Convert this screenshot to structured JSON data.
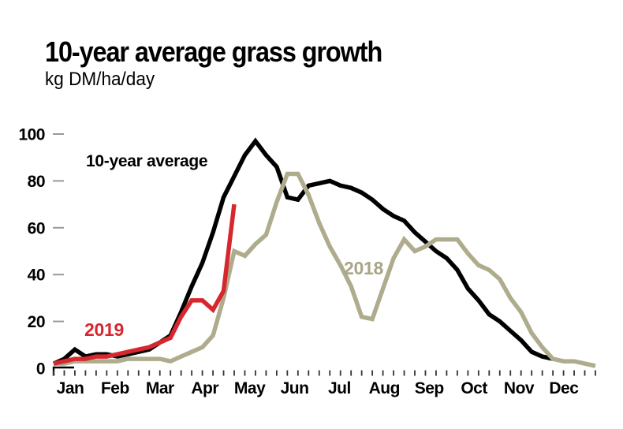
{
  "header": {
    "title": "10-year average grass growth",
    "units": "kg DM/ha/day"
  },
  "chart_data": {
    "type": "line",
    "title": "10-year average grass growth",
    "ylabel": "kg DM/ha/day",
    "xlabel": "",
    "x_unit": "week-of-year",
    "grid": false,
    "ylim": [
      0,
      100
    ],
    "yticks": [
      0,
      20,
      40,
      60,
      80,
      100
    ],
    "months": [
      "Jan",
      "Feb",
      "Mar",
      "Apr",
      "May",
      "Jun",
      "Jul",
      "Aug",
      "Sep",
      "Oct",
      "Nov",
      "Dec"
    ],
    "axis_colors": {
      "ytick": "#999999",
      "xtick": "#333333",
      "label": "#000000"
    },
    "series": [
      {
        "id": "avg10",
        "name": "10-year average",
        "color": "#000000",
        "values": [
          2,
          4,
          8,
          5,
          6,
          6,
          5,
          6,
          7,
          8,
          11,
          14,
          24,
          35,
          45,
          58,
          73,
          82,
          91,
          97,
          91,
          86,
          73,
          72,
          78,
          79,
          80,
          78,
          77,
          75,
          72,
          68,
          65,
          63,
          58,
          54,
          50,
          47,
          42,
          34,
          29,
          23,
          20,
          16,
          12,
          7,
          5,
          4
        ]
      },
      {
        "id": "y2018",
        "name": "2018",
        "color": "#afac8e",
        "values": [
          2,
          2,
          3,
          3,
          3,
          3,
          3,
          4,
          4,
          4,
          4,
          3,
          5,
          7,
          9,
          14,
          30,
          50,
          48,
          53,
          57,
          71,
          83,
          83,
          74,
          62,
          52,
          44,
          35,
          22,
          21,
          34,
          47,
          55,
          50,
          52,
          55,
          55,
          55,
          49,
          44,
          42,
          38,
          30,
          24,
          15,
          9,
          4,
          3,
          3,
          2,
          1
        ]
      },
      {
        "id": "y2019",
        "name": "2019",
        "color": "#d7272e",
        "values": [
          2,
          3,
          4,
          4,
          5,
          5,
          6,
          7,
          8,
          9,
          11,
          13,
          22,
          29,
          29,
          25,
          33,
          70
        ]
      }
    ],
    "annotations": [
      {
        "id": "avg10",
        "text": "10-year average",
        "color": "#000000"
      },
      {
        "id": "y2018",
        "text": "2018",
        "color": "#a8a588"
      },
      {
        "id": "y2019",
        "text": "2019",
        "color": "#d7272e"
      }
    ]
  }
}
